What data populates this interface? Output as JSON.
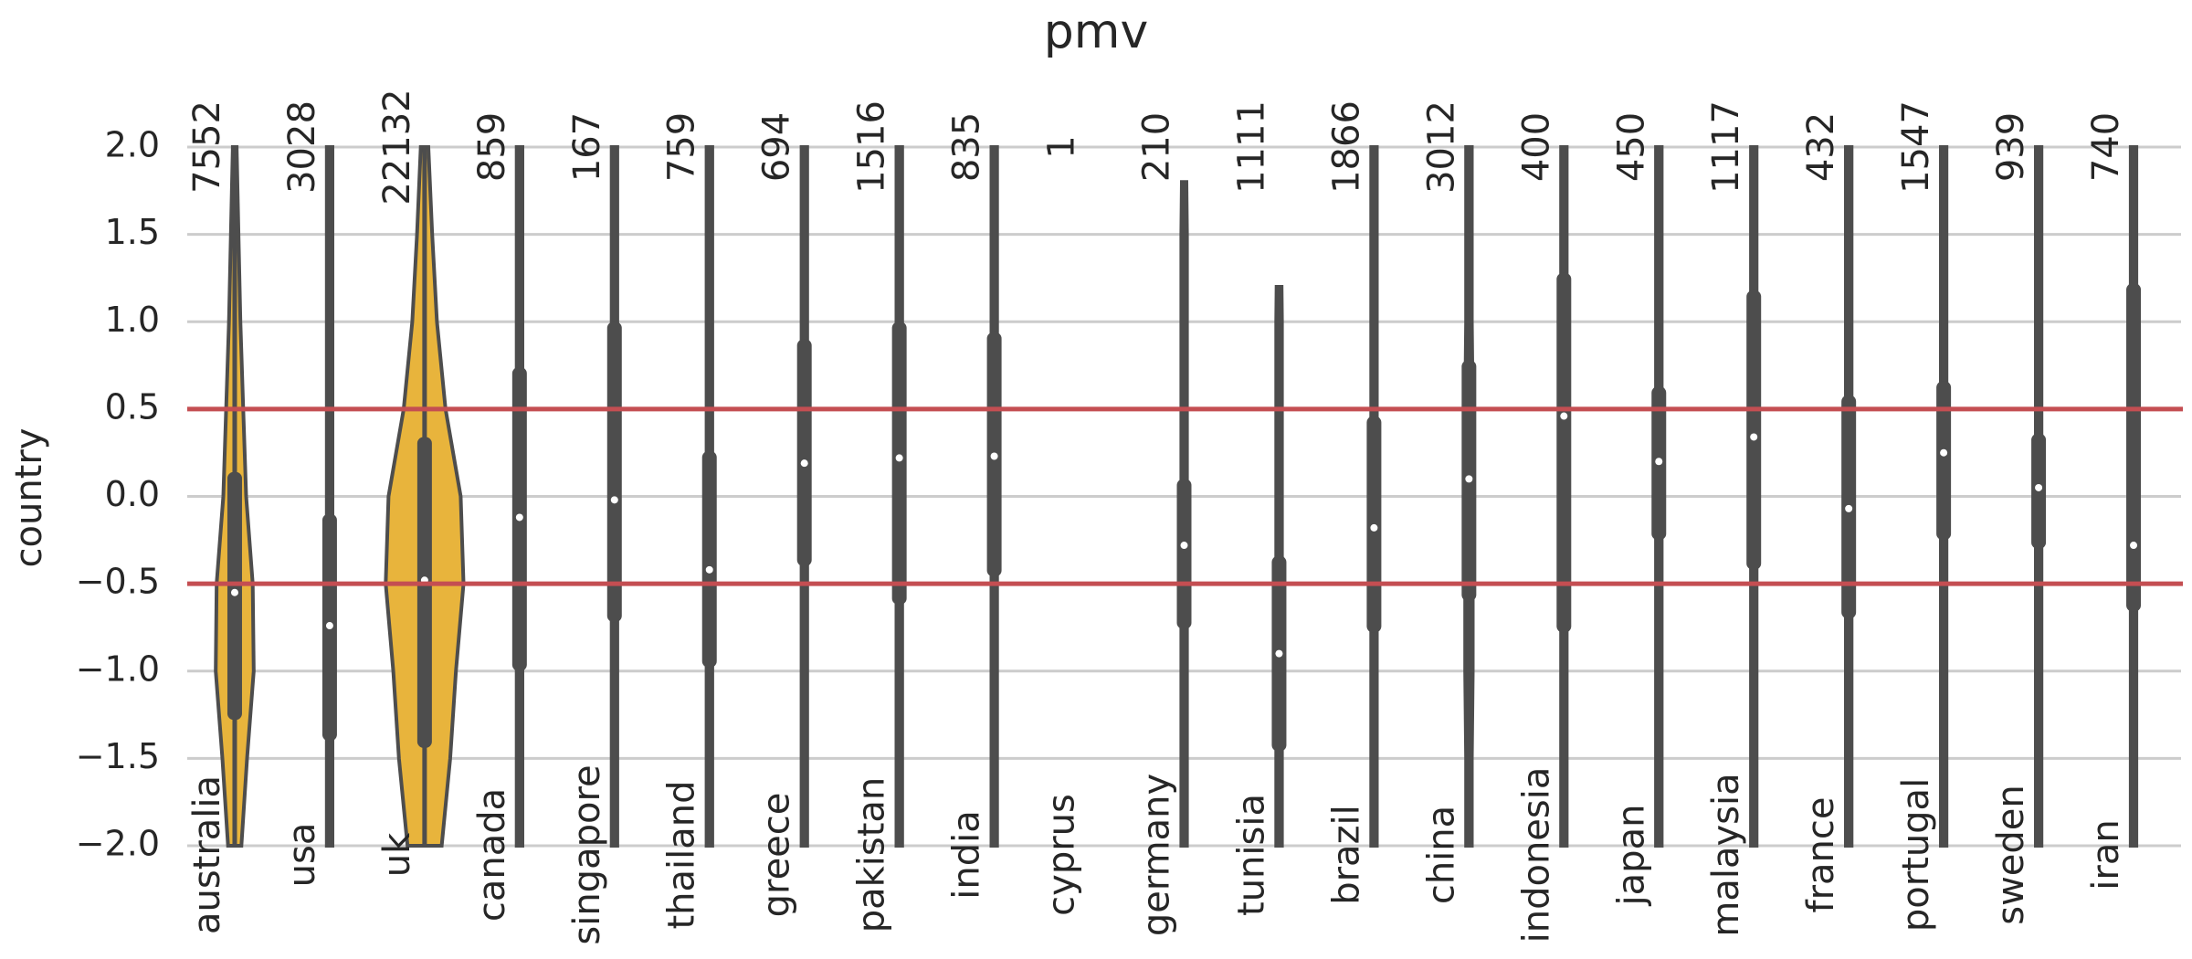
{
  "chart_data": {
    "type": "violin",
    "title": "pmv",
    "y_label": "country",
    "categories": [
      "australia",
      "usa",
      "uk",
      "canada",
      "singapore",
      "thailand",
      "greece",
      "pakistan",
      "india",
      "cyprus",
      "germany",
      "tunisia",
      "brazil",
      "china",
      "indonesia",
      "japan",
      "malaysia",
      "france",
      "portugal",
      "sweden",
      "iran"
    ],
    "counts": [
      7552,
      3028,
      22132,
      859,
      167,
      759,
      694,
      1516,
      835,
      1,
      210,
      1111,
      1866,
      3012,
      400,
      450,
      1117,
      432,
      1547,
      939,
      740
    ],
    "colors": [
      "#e8b43c",
      "#595959",
      "#e8b43c",
      "#595959",
      "#595959",
      "#595959",
      "#595959",
      "#595959",
      "#595959",
      "#595959",
      "#595959",
      "#595959",
      "#595959",
      "#595959",
      "#595959",
      "#595959",
      "#595959",
      "#595959",
      "#595959",
      "#595959",
      "#595959"
    ],
    "median": [
      -0.55,
      -0.74,
      -0.48,
      -0.12,
      -0.02,
      -0.42,
      0.19,
      0.22,
      0.23,
      null,
      -0.28,
      -0.9,
      -0.18,
      0.1,
      0.46,
      0.2,
      0.34,
      -0.07,
      0.25,
      0.05,
      -0.28
    ],
    "q1": [
      -1.28,
      -1.4,
      -1.44,
      -1.0,
      -0.72,
      -0.98,
      -0.4,
      -0.62,
      -0.46,
      null,
      -0.76,
      -1.46,
      -0.78,
      -0.6,
      -0.78,
      -0.25,
      -0.42,
      -0.7,
      -0.25,
      -0.3,
      -0.66
    ],
    "q3": [
      0.14,
      -0.1,
      0.34,
      0.74,
      1.0,
      0.26,
      0.9,
      1.0,
      0.94,
      null,
      0.1,
      -0.34,
      0.46,
      0.78,
      1.28,
      0.63,
      1.18,
      0.58,
      0.66,
      0.36,
      1.22
    ],
    "min": [
      -2,
      -2,
      -2,
      -2,
      -2,
      -2,
      -2,
      -2,
      -2,
      null,
      -2,
      -2,
      -2,
      -2,
      -2,
      -2,
      -2,
      -2,
      -2,
      -2,
      -2
    ],
    "max": [
      2,
      2,
      2,
      2,
      2,
      2,
      2,
      2,
      2,
      null,
      1.8,
      1.2,
      2,
      2,
      2,
      2,
      2,
      2,
      2,
      2,
      2
    ],
    "density_y": [
      -2,
      -1.5,
      -1,
      -0.5,
      0,
      0.5,
      1,
      1.5,
      2
    ],
    "density": [
      [
        0.07,
        0.13,
        0.2,
        0.19,
        0.12,
        0.09,
        0.06,
        0.04,
        0.02
      ],
      [
        0.03,
        0.03,
        0.03,
        0.03,
        0.03,
        0.03,
        0.03,
        0.03,
        0.03
      ],
      [
        0.18,
        0.27,
        0.33,
        0.41,
        0.38,
        0.22,
        0.13,
        0.08,
        0.04
      ],
      [
        0.03,
        0.03,
        0.03,
        0.03,
        0.03,
        0.03,
        0.03,
        0.03,
        0.03
      ],
      [
        0.03,
        0.03,
        0.03,
        0.03,
        0.03,
        0.03,
        0.03,
        0.03,
        0.03
      ],
      [
        0.03,
        0.03,
        0.03,
        0.03,
        0.03,
        0.03,
        0.03,
        0.03,
        0.03
      ],
      [
        0.03,
        0.03,
        0.03,
        0.03,
        0.03,
        0.03,
        0.03,
        0.03,
        0.03
      ],
      [
        0.03,
        0.03,
        0.03,
        0.03,
        0.03,
        0.03,
        0.03,
        0.03,
        0.03
      ],
      [
        0.03,
        0.03,
        0.03,
        0.03,
        0.03,
        0.03,
        0.03,
        0.03,
        0.03
      ],
      null,
      [
        0.03,
        0.03,
        0.03,
        0.03,
        0.03,
        0.03,
        0.03,
        0.03,
        0.02
      ],
      [
        0.03,
        0.03,
        0.03,
        0.03,
        0.03,
        0.03,
        0.03,
        0.02,
        0.02
      ],
      [
        0.03,
        0.03,
        0.03,
        0.03,
        0.03,
        0.03,
        0.03,
        0.03,
        0.03
      ],
      [
        0.03,
        0.03,
        0.04,
        0.04,
        0.04,
        0.04,
        0.03,
        0.03,
        0.03
      ],
      [
        0.03,
        0.03,
        0.03,
        0.03,
        0.03,
        0.03,
        0.03,
        0.03,
        0.03
      ],
      [
        0.03,
        0.03,
        0.03,
        0.03,
        0.03,
        0.03,
        0.03,
        0.03,
        0.03
      ],
      [
        0.03,
        0.03,
        0.03,
        0.03,
        0.03,
        0.03,
        0.03,
        0.03,
        0.03
      ],
      [
        0.03,
        0.03,
        0.03,
        0.03,
        0.03,
        0.03,
        0.03,
        0.03,
        0.03
      ],
      [
        0.03,
        0.03,
        0.03,
        0.03,
        0.03,
        0.03,
        0.03,
        0.03,
        0.03
      ],
      [
        0.03,
        0.03,
        0.03,
        0.03,
        0.03,
        0.03,
        0.03,
        0.03,
        0.03
      ],
      [
        0.03,
        0.03,
        0.03,
        0.03,
        0.03,
        0.03,
        0.03,
        0.03,
        0.03
      ]
    ],
    "ylim": [
      -2,
      2
    ],
    "yticks": [
      {
        "value": -2,
        "label": "−2.0"
      },
      {
        "value": -1.5,
        "label": "−1.5"
      },
      {
        "value": -1,
        "label": "−1.0"
      },
      {
        "value": -0.5,
        "label": "−0.5"
      },
      {
        "value": 0,
        "label": "0.0"
      },
      {
        "value": 0.5,
        "label": "0.5"
      },
      {
        "value": 1,
        "label": "1.0"
      },
      {
        "value": 1.5,
        "label": "1.5"
      },
      {
        "value": 2,
        "label": "2.0"
      }
    ],
    "grid": true,
    "hlines": [
      0.5,
      -0.5
    ],
    "hline_color": "#c44e52"
  }
}
